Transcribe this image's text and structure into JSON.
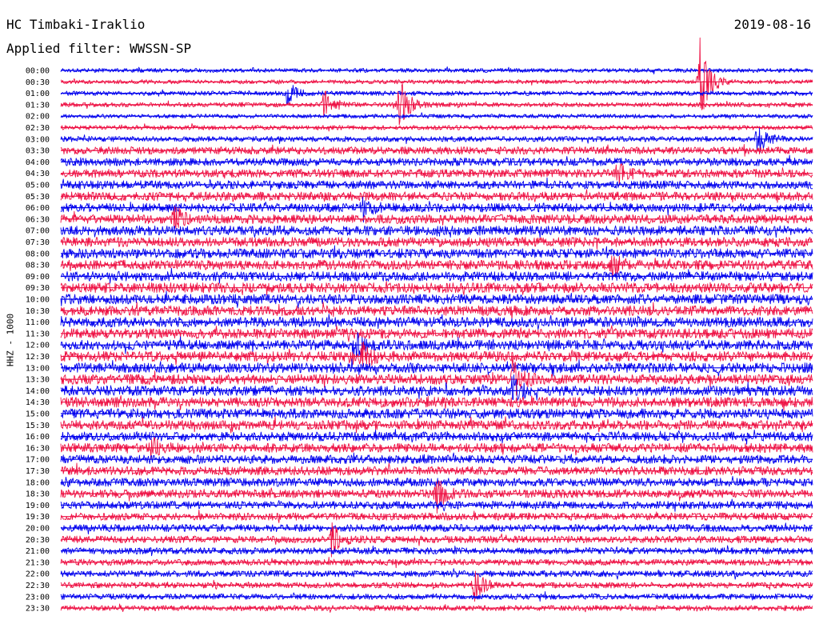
{
  "header": {
    "station": "HC Timbaki-Iraklio",
    "date": "2019-08-16",
    "filter": "Applied filter: WWSSN-SP"
  },
  "chart_data": {
    "type": "line",
    "channel_label": "HHZ - 1000",
    "trace_colors": [
      "#0000ee",
      "#ee1144"
    ],
    "row_labels": [
      "00:00",
      "00:30",
      "01:00",
      "01:30",
      "02:00",
      "02:30",
      "03:00",
      "03:30",
      "04:00",
      "04:30",
      "05:00",
      "05:30",
      "06:00",
      "06:30",
      "07:00",
      "07:30",
      "08:00",
      "08:30",
      "09:00",
      "09:30",
      "10:00",
      "10:30",
      "11:00",
      "11:30",
      "12:00",
      "12:30",
      "13:00",
      "13:30",
      "14:00",
      "14:30",
      "15:00",
      "15:30",
      "16:00",
      "16:30",
      "17:00",
      "17:30",
      "18:00",
      "18:30",
      "19:00",
      "19:30",
      "20:00",
      "20:30",
      "21:00",
      "21:30",
      "22:00",
      "22:30",
      "23:00",
      "23:30"
    ],
    "noise_level": [
      0.3,
      0.3,
      0.35,
      0.35,
      0.3,
      0.35,
      0.45,
      0.7,
      0.75,
      0.8,
      0.8,
      0.85,
      0.85,
      0.9,
      0.95,
      0.95,
      0.95,
      0.95,
      0.95,
      1.0,
      1.0,
      1.0,
      1.0,
      1.0,
      1.0,
      1.0,
      1.0,
      1.0,
      1.0,
      1.0,
      1.0,
      0.95,
      0.9,
      0.9,
      0.85,
      0.85,
      0.8,
      0.8,
      0.75,
      0.7,
      0.7,
      0.65,
      0.6,
      0.55,
      0.55,
      0.5,
      0.5,
      0.45
    ],
    "events": [
      {
        "row": 1,
        "minute": 25.5,
        "amp": 4.2
      },
      {
        "row": 2,
        "minute": 9.0,
        "amp": 1.2
      },
      {
        "row": 3,
        "minute": 10.5,
        "amp": 1.5
      },
      {
        "row": 3,
        "minute": 13.5,
        "amp": 2.6
      },
      {
        "row": 6,
        "minute": 27.8,
        "amp": 1.4
      },
      {
        "row": 9,
        "minute": 22.2,
        "amp": 1.2
      },
      {
        "row": 12,
        "minute": 12.0,
        "amp": 1.0
      },
      {
        "row": 13,
        "minute": 4.5,
        "amp": 1.2
      },
      {
        "row": 17,
        "minute": 22.0,
        "amp": 0.9
      },
      {
        "row": 24,
        "minute": 11.7,
        "amp": 1.3
      },
      {
        "row": 25,
        "minute": 12.0,
        "amp": 1.4
      },
      {
        "row": 27,
        "minute": 18.0,
        "amp": 1.8
      },
      {
        "row": 28,
        "minute": 18.0,
        "amp": 1.4
      },
      {
        "row": 33,
        "minute": 3.6,
        "amp": 0.9
      },
      {
        "row": 37,
        "minute": 15.0,
        "amp": 1.5
      },
      {
        "row": 41,
        "minute": 10.8,
        "amp": 1.5
      },
      {
        "row": 45,
        "minute": 16.5,
        "amp": 1.4
      }
    ],
    "xlim": [
      0,
      30
    ],
    "grid": false
  }
}
